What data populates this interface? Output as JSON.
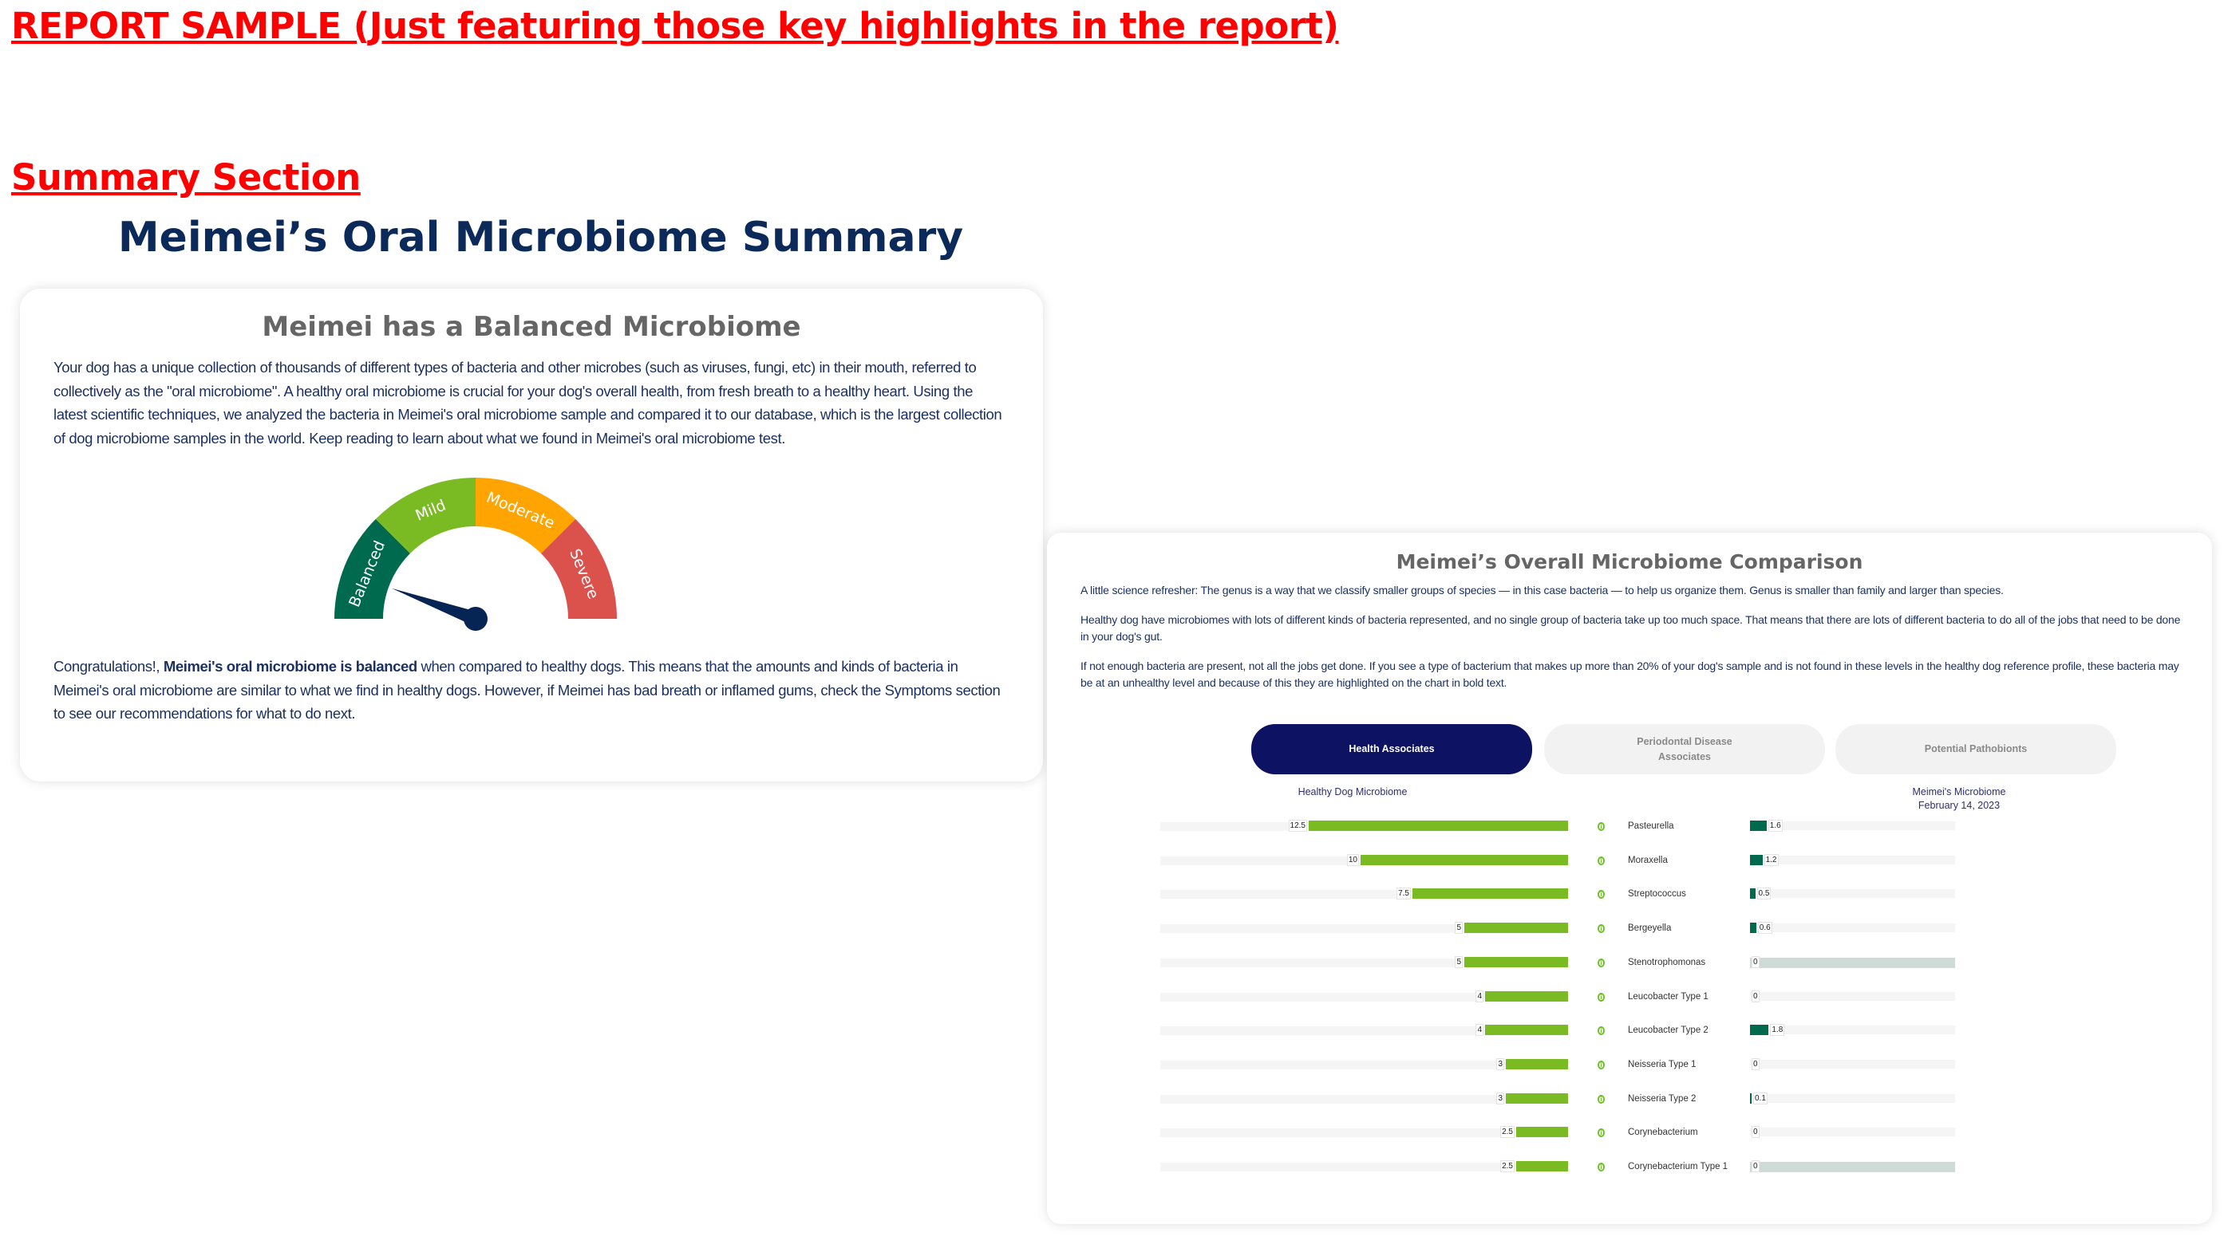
{
  "banner": {
    "title": "REPORT SAMPLE (Just featuring those key highlights in the report)"
  },
  "section": {
    "title": "Summary Section"
  },
  "summary": {
    "title": "Meimei’s Oral Microbiome Summary",
    "card_title": "Meimei has a Balanced Microbiome",
    "intro": "Your dog has a unique collection of thousands of different types of bacteria and other microbes (such as viruses, fungi, etc) in their mouth, referred to collectively as the \"oral microbiome\". A healthy oral microbiome is crucial for your dog's overall health, from fresh breath to a healthy heart. Using the latest scientific techniques, we analyzed the bacteria in Meimei's oral microbiome sample and compared it to our database, which is the largest collection of dog microbiome samples in the world. Keep reading to learn about what we found in Meimei's oral microbiome test.",
    "gauge": {
      "segments": [
        {
          "label": "Balanced",
          "color": "#006a4e"
        },
        {
          "label": "Mild",
          "color": "#7aba22"
        },
        {
          "label": "Moderate",
          "color": "#ffa400"
        },
        {
          "label": "Severe",
          "color": "#db514c"
        }
      ],
      "selected": "Balanced",
      "needle_color": "#062454"
    },
    "congrats_prefix": "Congratulations!, ",
    "congrats_bold": "Meimei's oral microbiome is balanced",
    "congrats_rest": " when compared to healthy dogs. This means that the amounts and kinds of bacteria in Meimei's oral microbiome are similar to what we find in healthy dogs. However, if Meimei has bad breath or inflamed gums, check the Symptoms section to see our recommendations for what to do next."
  },
  "comparison": {
    "title": "Meimei’s Overall Microbiome Comparison",
    "paragraphs": [
      "A little science refresher: The genus is a way that we classify smaller groups of species — in this case bacteria — to help us organize them. Genus is smaller than family and larger than species.",
      "Healthy dog have microbiomes with lots of different kinds of bacteria represented, and no single group of bacteria take up too much space. That means that there are lots of different bacteria to do all of the jobs that need to be done in your dog's gut.",
      "If not enough bacteria are present, not all the jobs get done. If you see a type of bacterium that makes up more than 20% of your dog's sample and is not found in these levels in the healthy dog reference profile, these bacteria may be at an unhealthy level and because of this they are highlighted on the chart in bold text."
    ],
    "tabs": [
      {
        "label": "Health Associates",
        "active": true
      },
      {
        "label": "Periodontal Disease Associates",
        "active": false
      },
      {
        "label": "Potential Pathobionts",
        "active": false
      }
    ],
    "left_label": "Healthy Dog Microbiome",
    "right_label": "Meimei's Microbiome",
    "right_date": "February 14, 2023"
  },
  "chart_data": {
    "type": "bar",
    "orientation": "horizontal, mirrored",
    "categories": [
      "Pasteurella",
      "Moraxella",
      "Streptococcus",
      "Bergeyella",
      "Stenotrophomonas",
      "Leucobacter Type 1",
      "Leucobacter Type 2",
      "Neisseria Type 1",
      "Neisseria Type 2",
      "Corynebacterium",
      "Corynebacterium Type 1"
    ],
    "series": [
      {
        "name": "Healthy Dog Microbiome",
        "color": "#7aba22",
        "values": [
          12.5,
          10,
          7.5,
          5,
          5,
          4,
          4,
          3,
          3,
          2.5,
          2.5
        ]
      },
      {
        "name": "Meimei's Microbiome",
        "color": "#006a4e",
        "values": [
          1.6,
          1.2,
          0.5,
          0.6,
          0,
          0,
          1.8,
          0,
          0.1,
          0,
          0
        ]
      }
    ],
    "highlighted_tracks": [
      "Stenotrophomonas",
      "Corynebacterium Type 1"
    ],
    "highlight_color": "#cddcd6",
    "info_icon": "info-circle-icon"
  }
}
